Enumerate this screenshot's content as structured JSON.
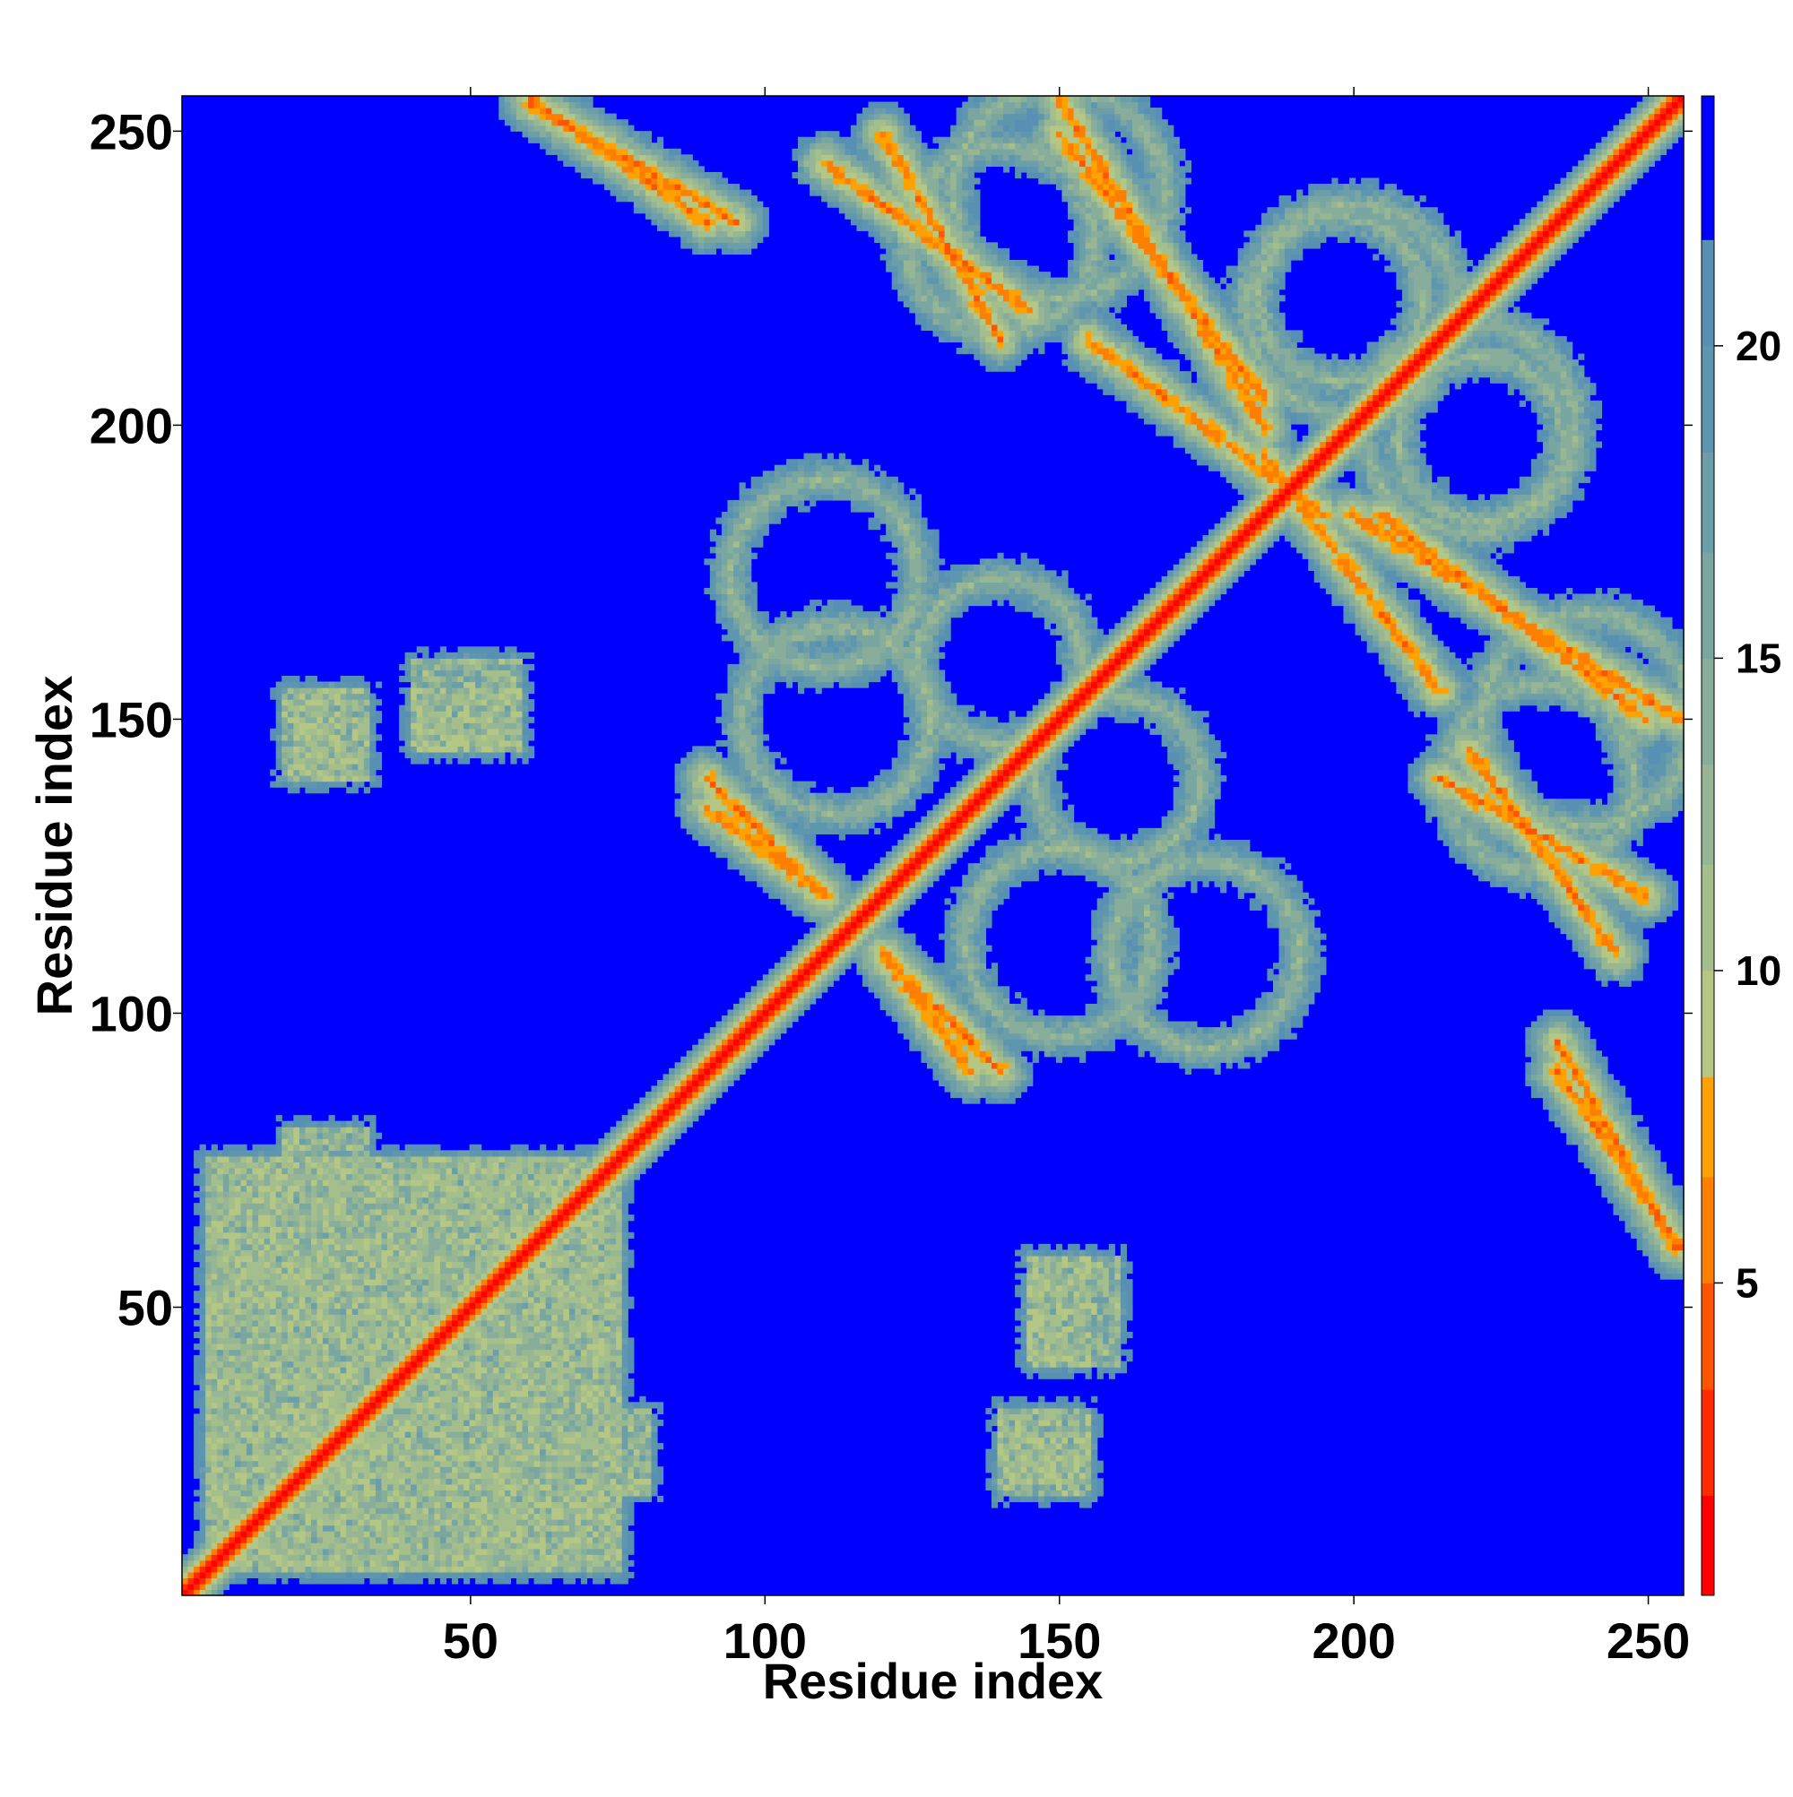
{
  "chart_data": {
    "type": "heatmap",
    "title": "",
    "xlabel": "Residue index",
    "ylabel": "Residue index",
    "n_residues": 256,
    "xlim": [
      1,
      256
    ],
    "ylim": [
      1,
      256
    ],
    "x_ticks": [
      50,
      100,
      150,
      200,
      250
    ],
    "y_ticks": [
      50,
      100,
      150,
      200,
      250
    ],
    "colorbar": {
      "range": [
        0,
        24
      ],
      "ticks": [
        5,
        10,
        15,
        20
      ],
      "levels": [
        {
          "from": 0,
          "to": 1.6,
          "color": "#ff0000"
        },
        {
          "from": 1.6,
          "to": 3.3,
          "color": "#ff2a00"
        },
        {
          "from": 3.3,
          "to": 5.0,
          "color": "#ff5500"
        },
        {
          "from": 5.0,
          "to": 6.7,
          "color": "#ff7f00"
        },
        {
          "from": 6.7,
          "to": 8.3,
          "color": "#ffa100"
        },
        {
          "from": 8.3,
          "to": 10.0,
          "color": "#b4c784"
        },
        {
          "from": 10.0,
          "to": 11.7,
          "color": "#a5bf8c"
        },
        {
          "from": 11.7,
          "to": 13.3,
          "color": "#97b794"
        },
        {
          "from": 13.3,
          "to": 15.0,
          "color": "#88ae9b"
        },
        {
          "from": 15.0,
          "to": 16.7,
          "color": "#7aa6a2"
        },
        {
          "from": 16.7,
          "to": 18.3,
          "color": "#6c9ea9"
        },
        {
          "from": 18.3,
          "to": 20.0,
          "color": "#5f96af"
        },
        {
          "from": 20.0,
          "to": 21.7,
          "color": "#5890b4"
        },
        {
          "from": 21.7,
          "to": 24.0,
          "color": "#0000ff"
        }
      ]
    },
    "background_color": "#0000ff",
    "contact_features": [
      {
        "kind": "diagonal_band",
        "from": 1,
        "to": 256
      },
      {
        "kind": "dense_block",
        "x": [
          5,
          75
        ],
        "y": [
          5,
          75
        ]
      },
      {
        "kind": "dense_block",
        "x": [
          65,
          80
        ],
        "y": [
          18,
          32
        ]
      },
      {
        "kind": "dense_block",
        "x": [
          140,
          155
        ],
        "y": [
          18,
          28
        ]
      },
      {
        "kind": "dense_block",
        "x": [
          20,
          32
        ],
        "y": [
          140,
          155
        ]
      },
      {
        "kind": "dense_block",
        "x": [
          40,
          58
        ],
        "y": [
          145,
          155
        ]
      },
      {
        "kind": "dense_block",
        "x": [
          145,
          160
        ],
        "y": [
          40,
          58
        ]
      },
      {
        "kind": "antiparallel",
        "x": [
          90,
          110
        ],
        "y": [
          120,
          135
        ]
      },
      {
        "kind": "antiparallel",
        "x": [
          120,
          140
        ],
        "y": [
          90,
          110
        ]
      },
      {
        "kind": "antiparallel",
        "x": [
          60,
          90
        ],
        "y": [
          235,
          256
        ]
      },
      {
        "kind": "antiparallel",
        "x": [
          120,
          140
        ],
        "y": [
          215,
          250
        ]
      },
      {
        "kind": "antiparallel",
        "x": [
          150,
          185
        ],
        "y": [
          200,
          256
        ]
      },
      {
        "kind": "antiparallel",
        "x": [
          185,
          215
        ],
        "y": [
          155,
          195
        ]
      },
      {
        "kind": "antiparallel",
        "x": [
          205,
          250
        ],
        "y": [
          150,
          185
        ]
      },
      {
        "kind": "antiparallel",
        "x": [
          220,
          245
        ],
        "y": [
          110,
          145
        ]
      },
      {
        "kind": "antiparallel",
        "x": [
          235,
          255
        ],
        "y": [
          60,
          95
        ]
      },
      {
        "kind": "ring",
        "cx": 200,
        "cy": 220,
        "r": 18
      },
      {
        "kind": "ring",
        "cx": 222,
        "cy": 198,
        "r": 14
      },
      {
        "kind": "ring",
        "cx": 240,
        "cy": 150,
        "r": 18
      },
      {
        "kind": "ring",
        "cx": 160,
        "cy": 140,
        "r": 14
      },
      {
        "kind": "ring",
        "cx": 140,
        "cy": 232,
        "r": 16
      },
      {
        "kind": "ring",
        "cx": 112,
        "cy": 150,
        "r": 16
      },
      {
        "kind": "ring",
        "cx": 175,
        "cy": 110,
        "r": 16
      }
    ]
  }
}
